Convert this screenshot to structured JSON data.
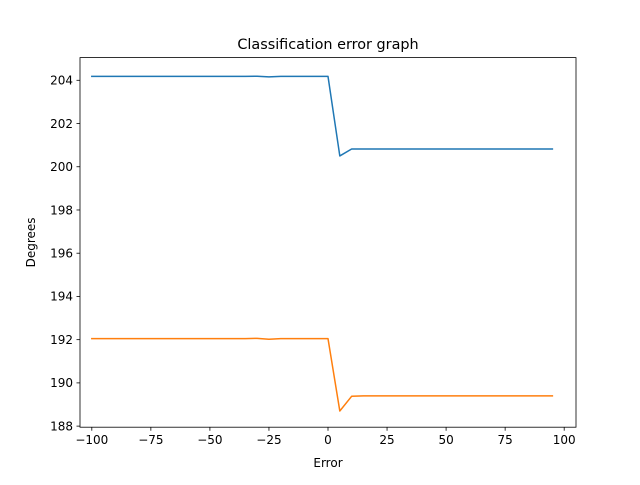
{
  "chart_data": {
    "type": "line",
    "title": "Classification error graph",
    "xlabel": "Error",
    "ylabel": "Degrees",
    "xlim": [
      -105,
      105
    ],
    "ylim": [
      187.95,
      205.05
    ],
    "xticks": [
      -100,
      -75,
      -50,
      -25,
      0,
      25,
      50,
      75,
      100
    ],
    "xtick_labels": [
      "−100",
      "−75",
      "−50",
      "−25",
      "0",
      "25",
      "50",
      "75",
      "100"
    ],
    "yticks": [
      188,
      190,
      192,
      194,
      196,
      198,
      200,
      202,
      204
    ],
    "ytick_labels": [
      "188",
      "190",
      "192",
      "194",
      "196",
      "198",
      "200",
      "202",
      "204"
    ],
    "grid": false,
    "legend": "none",
    "x": [
      -100,
      -95,
      -90,
      -85,
      -80,
      -75,
      -70,
      -65,
      -60,
      -55,
      -50,
      -45,
      -40,
      -35,
      -30,
      -25,
      -20,
      -15,
      -10,
      -5,
      0,
      5,
      10,
      15,
      20,
      25,
      30,
      35,
      40,
      45,
      50,
      55,
      60,
      65,
      70,
      75,
      80,
      85,
      90,
      95
    ],
    "series": [
      {
        "color": "#1f77b4",
        "values": [
          204.18,
          204.18,
          204.18,
          204.18,
          204.18,
          204.18,
          204.18,
          204.18,
          204.18,
          204.18,
          204.18,
          204.18,
          204.18,
          204.18,
          204.19,
          204.16,
          204.18,
          204.18,
          204.18,
          204.18,
          204.18,
          200.5,
          200.82,
          200.82,
          200.82,
          200.82,
          200.82,
          200.82,
          200.82,
          200.82,
          200.82,
          200.82,
          200.82,
          200.82,
          200.82,
          200.82,
          200.82,
          200.82,
          200.82,
          200.82
        ]
      },
      {
        "color": "#ff7f0e",
        "values": [
          192.05,
          192.05,
          192.05,
          192.05,
          192.05,
          192.05,
          192.05,
          192.05,
          192.05,
          192.05,
          192.05,
          192.05,
          192.05,
          192.05,
          192.06,
          192.02,
          192.05,
          192.05,
          192.05,
          192.05,
          192.05,
          188.7,
          189.38,
          189.4,
          189.4,
          189.4,
          189.4,
          189.4,
          189.4,
          189.4,
          189.4,
          189.4,
          189.4,
          189.4,
          189.4,
          189.4,
          189.4,
          189.4,
          189.4,
          189.4
        ]
      }
    ]
  }
}
